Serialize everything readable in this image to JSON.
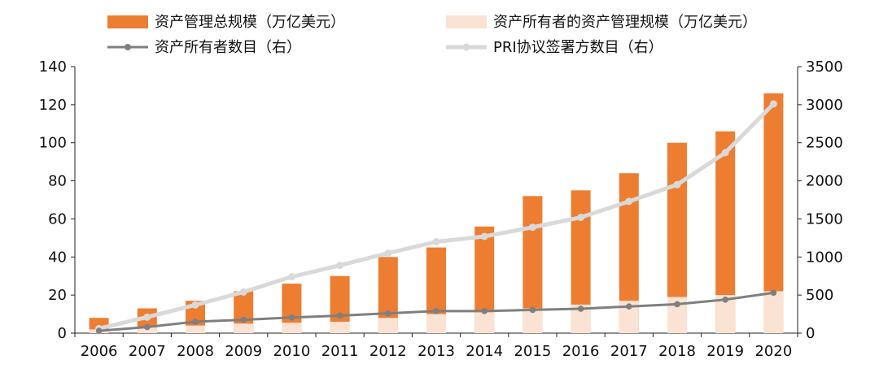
{
  "chart_data": {
    "type": "bar",
    "categories": [
      "2006",
      "2007",
      "2008",
      "2009",
      "2010",
      "2011",
      "2012",
      "2013",
      "2014",
      "2015",
      "2016",
      "2017",
      "2018",
      "2019",
      "2020"
    ],
    "y_left": {
      "range": [
        0,
        140
      ],
      "ticks": [
        "0",
        "20",
        "40",
        "60",
        "80",
        "100",
        "120",
        "140"
      ]
    },
    "y_right": {
      "range": [
        0,
        3500
      ],
      "ticks": [
        "0",
        "500",
        "1000",
        "1500",
        "2000",
        "2500",
        "3000",
        "3500"
      ]
    },
    "series": [
      {
        "name": "资产管理总规模（万亿美元）",
        "type": "bar",
        "axis": "left",
        "color": "#ED7D31",
        "values": [
          8,
          13,
          17,
          22,
          26,
          30,
          40,
          45,
          56,
          72,
          75,
          84,
          100,
          106,
          126
        ]
      },
      {
        "name": "资产所有者的资产管理规模（万亿美元）",
        "type": "bar",
        "axis": "left",
        "color": "#FBE3D4",
        "values": [
          2,
          3,
          4,
          5,
          5.5,
          6,
          8,
          10,
          11,
          13,
          15,
          17,
          19,
          20,
          22
        ]
      },
      {
        "name": "资产所有者数目（右）",
        "type": "line",
        "axis": "right",
        "color": "#7F7F7F",
        "values": [
          30,
          80,
          150,
          175,
          205,
          230,
          260,
          290,
          290,
          305,
          320,
          350,
          380,
          440,
          530
        ]
      },
      {
        "name": "PRI协议签署方数目（右）",
        "type": "line",
        "axis": "right",
        "color": "#D9D9D9",
        "values": [
          60,
          210,
          370,
          540,
          740,
          890,
          1050,
          1200,
          1270,
          1390,
          1520,
          1730,
          1950,
          2370,
          3010
        ]
      }
    ]
  }
}
